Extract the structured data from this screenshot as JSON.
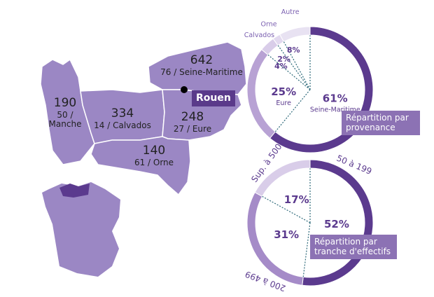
{
  "map": {
    "regions": [
      {
        "count": "642",
        "label": "76 / Seine-Maritime"
      },
      {
        "count": "190",
        "label": "50 / Manche"
      },
      {
        "count": "334",
        "label": "14 / Calvados"
      },
      {
        "count": "248",
        "label": "27 / Eure"
      },
      {
        "count": "140",
        "label": "61 / Orne"
      }
    ],
    "city": "Rouen"
  },
  "chart_data": [
    {
      "type": "pie",
      "title": "Répartition par provenance",
      "categories": [
        "Seine-Maritime",
        "Eure",
        "Calvados",
        "Orne",
        "Autre"
      ],
      "values": [
        61,
        25,
        4,
        2,
        8
      ],
      "value_labels": [
        "61%",
        "25%",
        "4%",
        "2%",
        "8%"
      ],
      "colors": [
        "#5b3a8e",
        "#b8a2d4",
        "#d9cde9",
        "#e2d9ef",
        "#e8e2f2"
      ]
    },
    {
      "type": "pie",
      "title": "Répartition par tranche d'effectifs",
      "categories": [
        "50 à 199",
        "200 à 499",
        "Sup. à 500"
      ],
      "values": [
        52,
        31,
        17
      ],
      "value_labels": [
        "52%",
        "31%",
        "17%"
      ],
      "colors": [
        "#5b3a8e",
        "#a58bc8",
        "#d9cde9"
      ]
    }
  ]
}
